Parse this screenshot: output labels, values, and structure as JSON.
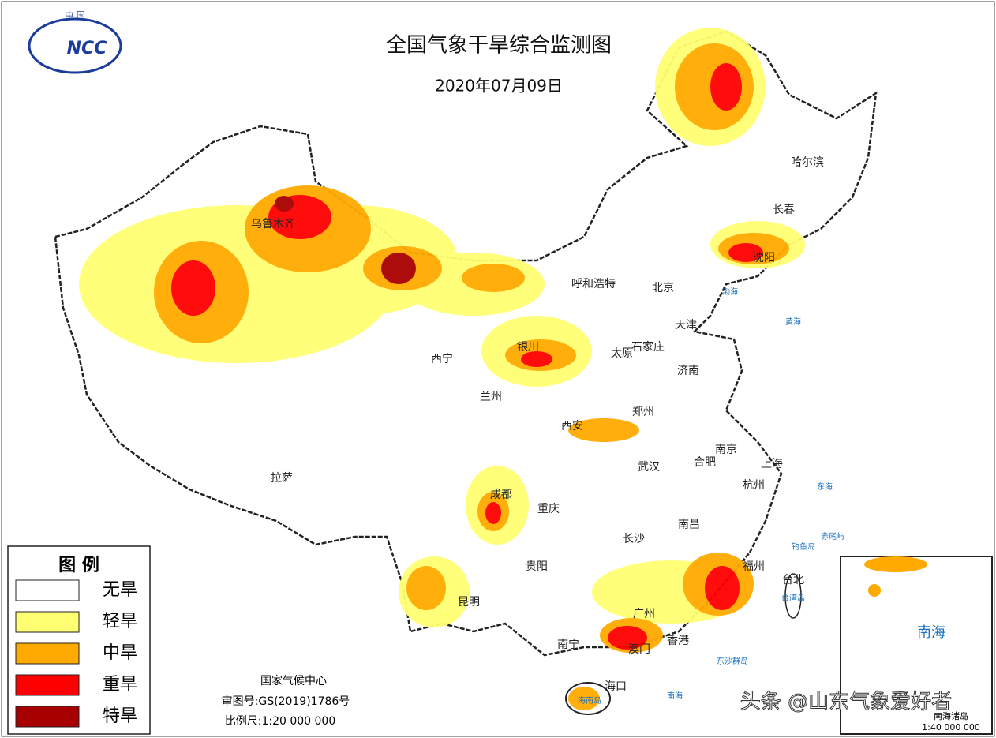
{
  "header": {
    "logo_top": "中 国",
    "logo": "NCC",
    "title": "全国气象干旱综合监测图",
    "date": "2020年07月09日"
  },
  "legend": {
    "title": "图 例",
    "items": [
      {
        "label": "无旱",
        "color": "#ffffff"
      },
      {
        "label": "轻旱",
        "color": "#ffff73"
      },
      {
        "label": "中旱",
        "color": "#ffaa00"
      },
      {
        "label": "重旱",
        "color": "#ff0000"
      },
      {
        "label": "特旱",
        "color": "#a80000"
      }
    ]
  },
  "cities": [
    "乌鲁木齐",
    "呼和浩特",
    "北京",
    "天津",
    "石家庄",
    "太原",
    "济南",
    "银川",
    "西宁",
    "兰州",
    "西安",
    "郑州",
    "南京",
    "合肥",
    "上海",
    "杭州",
    "武汉",
    "拉萨",
    "成都",
    "重庆",
    "长沙",
    "南昌",
    "贵阳",
    "昆明",
    "福州",
    "台北",
    "广州",
    "南宁",
    "香港",
    "澳门",
    "海口",
    "哈尔滨",
    "长春",
    "沈阳"
  ],
  "places": [
    "渤海",
    "黄海",
    "东海",
    "南海",
    "台湾岛",
    "海南岛",
    "东沙群岛",
    "钓鱼岛",
    "赤尾屿"
  ],
  "footer": {
    "agency": "国家气候中心",
    "approval": "审图号:GS(2019)1786号",
    "scale": "比例尺:1:20 000 000"
  },
  "inset": {
    "sea": "南海",
    "label": "南海诸岛",
    "scale": "1:40 000 000"
  },
  "watermark": "头条 @山东气象爱好者"
}
